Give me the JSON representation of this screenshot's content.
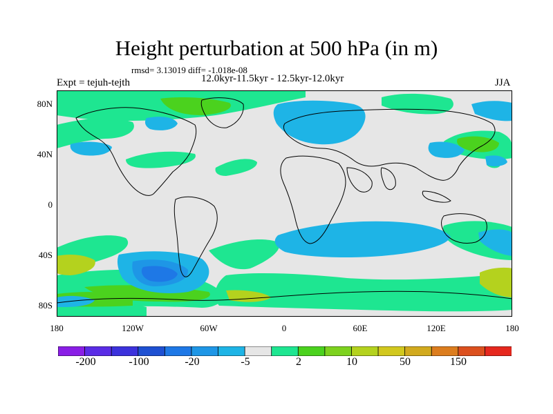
{
  "title": "Height perturbation at 500 hPa (in m)",
  "stats": "rmsd= 3.13019 diff= -1.018e-08",
  "expt": "Expt = tejuh-tejth",
  "periods": "12.0kyr-11.5kyr - 12.5kyr-12.0kyr",
  "season": "JJA",
  "map": {
    "lat_labels": [
      "80N",
      "40N",
      "0",
      "40S",
      "80S"
    ],
    "lon_labels": [
      "180",
      "120W",
      "60W",
      "0",
      "60E",
      "120E",
      "180"
    ],
    "lat_ticks": [
      80,
      40,
      0,
      -40,
      -80
    ],
    "lon_ticks": [
      -180,
      -120,
      -60,
      0,
      60,
      120,
      180
    ],
    "lon_range": [
      -180,
      180
    ],
    "lat_range": [
      -90,
      90
    ],
    "projection": "cylindrical equidistant"
  },
  "colorbar": {
    "colors": [
      "#8a1ee6",
      "#5a2ce6",
      "#3c32dc",
      "#1e50d2",
      "#1e78e6",
      "#1e96e6",
      "#1eb4e6",
      "#e6e6e6",
      "#1ee691",
      "#4bd21e",
      "#7dd21e",
      "#b4d21e",
      "#d2c81e",
      "#d2aa1e",
      "#dc7d1e",
      "#dc501e",
      "#e6281e"
    ],
    "label_values": [
      "-200",
      "-100",
      "-20",
      "-5",
      "2",
      "10",
      "50",
      "150"
    ]
  },
  "colors": {
    "background": "#ffffff",
    "map_background": "#e6e6e6",
    "coastline": "#000000"
  }
}
